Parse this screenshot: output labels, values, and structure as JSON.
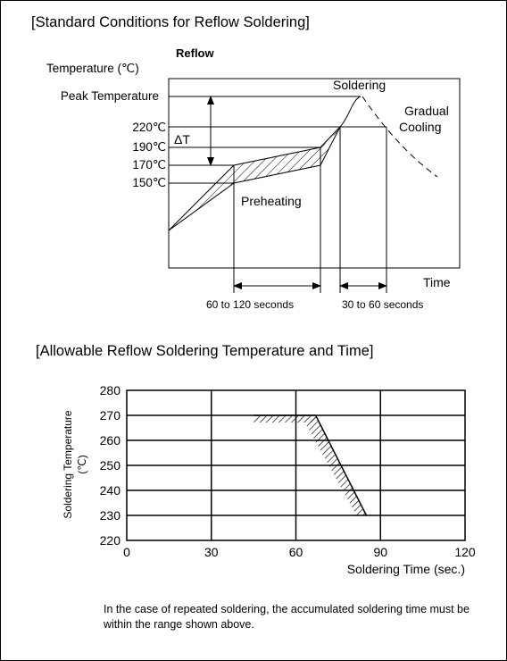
{
  "sections": {
    "reflow_title": "[Standard Conditions for Reflow Soldering]",
    "allowable_title": "[Allowable Reflow Soldering Temperature and Time]"
  },
  "chart_data": [
    {
      "type": "diagram",
      "title": "Reflow",
      "ylabel": "Temperature (℃)",
      "xlabel": "Time",
      "y_labels": [
        "Peak Temperature",
        "220℃",
        "190℃",
        "170℃",
        "150℃"
      ],
      "delta_label": "ΔT",
      "annotations": {
        "soldering": "Soldering",
        "cooling_line1": "Gradual",
        "cooling_line2": "Cooling",
        "preheating": "Preheating"
      },
      "durations": [
        "60 to 120 seconds",
        "30 to 60 seconds"
      ]
    },
    {
      "type": "area",
      "xlabel": "Soldering Time (sec.)",
      "ylabel_line1": "Soldering Temperature",
      "ylabel_line2": "(℃)",
      "xlim": [
        0,
        120
      ],
      "ylim": [
        220,
        280
      ],
      "x_ticks": [
        0,
        30,
        60,
        90,
        120
      ],
      "y_ticks": [
        220,
        230,
        240,
        250,
        260,
        270,
        280
      ],
      "grid": true,
      "boundary": {
        "x": [
          45,
          67,
          85
        ],
        "y": [
          270,
          270,
          230
        ]
      }
    }
  ],
  "note": "In the case of repeated soldering, the accumulated soldering time must be within the range shown above."
}
